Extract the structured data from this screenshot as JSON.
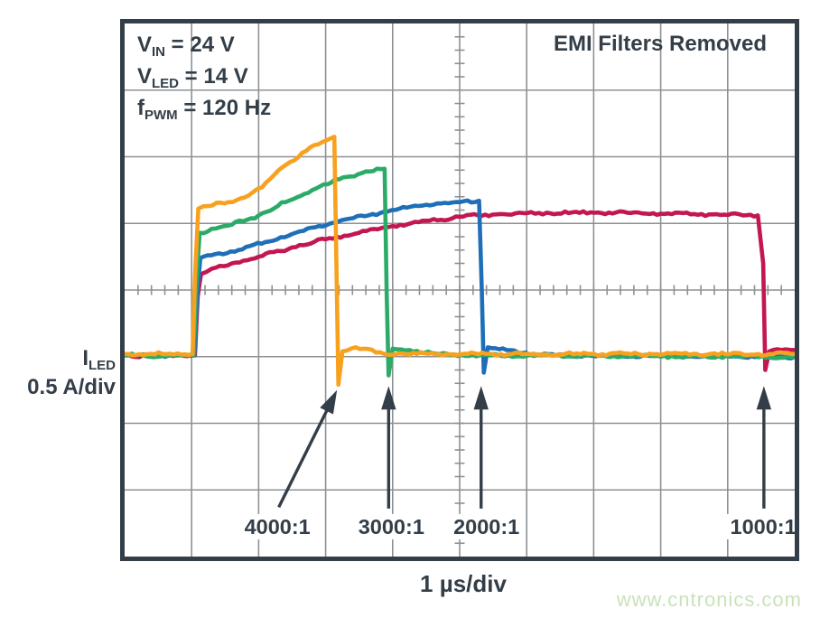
{
  "page": {
    "background": "#ffffff",
    "watermark": {
      "text": "www.cntronics.com",
      "color": "#c9e2ba"
    }
  },
  "scope": {
    "title": "EMI Filters Removed",
    "conditions": [
      {
        "base": "V",
        "sub": "IN",
        "rest": " = 24 V"
      },
      {
        "base": "V",
        "sub": "LED",
        "rest": " = 14 V"
      },
      {
        "base": "f",
        "sub": "PWM",
        "rest": " = 120 Hz"
      }
    ],
    "y_axis": {
      "base": "I",
      "sub": "LED",
      "scale": "0.5 A/div"
    },
    "x_axis": {
      "scale": "1 µs/div"
    },
    "colors": {
      "border": "#333e48",
      "grid": "#8e9194",
      "text": "#333e48",
      "arrow": "#333e48",
      "plot_bg": "#ffffff"
    }
  },
  "chart_data": {
    "type": "line",
    "title": "EMI Filters Removed",
    "subtitle_conditions": [
      "VIN = 24 V",
      "VLED = 14 V",
      "fPWM = 120 Hz"
    ],
    "x_unit": "µs",
    "y_unit": "A",
    "x_per_div": "1 µs/div",
    "y_per_div": "0.5 A/div",
    "x_range": [
      0,
      10
    ],
    "y_range_amps": [
      -1.525,
      2.5
    ],
    "grid": {
      "cols": 10,
      "rows": 8,
      "baseline_row_from_top": 5,
      "minor_ticks_per_div": 5,
      "center_cross_ticks": true
    },
    "legend_position": "callout-arrows-below-traces",
    "series": [
      {
        "name": "1000:1",
        "color": "#c31752",
        "points": [
          [
            0,
            0.01
          ],
          [
            1.05,
            0.01
          ],
          [
            1.09,
            0.45
          ],
          [
            1.14,
            0.62
          ],
          [
            1.3,
            0.66
          ],
          [
            1.6,
            0.7
          ],
          [
            2.0,
            0.75
          ],
          [
            2.5,
            0.82
          ],
          [
            3.0,
            0.88
          ],
          [
            3.5,
            0.93
          ],
          [
            4.0,
            0.98
          ],
          [
            4.5,
            1.02
          ],
          [
            5.0,
            1.05
          ],
          [
            5.6,
            1.07
          ],
          [
            6.3,
            1.08
          ],
          [
            7.5,
            1.08
          ],
          [
            8.5,
            1.07
          ],
          [
            9.45,
            1.06
          ],
          [
            9.53,
            0.7
          ],
          [
            9.56,
            -0.1
          ],
          [
            9.62,
            0.04
          ],
          [
            9.8,
            0.05
          ],
          [
            10,
            0.05
          ]
        ]
      },
      {
        "name": "2000:1",
        "color": "#1e6fb8",
        "points": [
          [
            0,
            0.01
          ],
          [
            1.04,
            0.01
          ],
          [
            1.08,
            0.45
          ],
          [
            1.13,
            0.74
          ],
          [
            1.35,
            0.77
          ],
          [
            1.7,
            0.8
          ],
          [
            2.1,
            0.86
          ],
          [
            2.5,
            0.92
          ],
          [
            2.9,
            0.98
          ],
          [
            3.3,
            1.03
          ],
          [
            3.7,
            1.07
          ],
          [
            4.1,
            1.11
          ],
          [
            4.5,
            1.14
          ],
          [
            5.0,
            1.16
          ],
          [
            5.29,
            1.17
          ],
          [
            5.33,
            0.5
          ],
          [
            5.36,
            -0.12
          ],
          [
            5.42,
            0.07
          ],
          [
            5.7,
            0.05
          ],
          [
            6.1,
            0.02
          ],
          [
            6.6,
            0.01
          ],
          [
            10,
            0.0
          ]
        ]
      },
      {
        "name": "3000:1",
        "color": "#2bab67",
        "points": [
          [
            0,
            0.01
          ],
          [
            1.03,
            0.01
          ],
          [
            1.07,
            0.55
          ],
          [
            1.12,
            0.93
          ],
          [
            1.3,
            0.96
          ],
          [
            1.6,
            0.99
          ],
          [
            2.0,
            1.06
          ],
          [
            2.4,
            1.16
          ],
          [
            2.8,
            1.25
          ],
          [
            3.2,
            1.33
          ],
          [
            3.6,
            1.39
          ],
          [
            3.88,
            1.41
          ],
          [
            3.91,
            0.5
          ],
          [
            3.94,
            -0.14
          ],
          [
            4.0,
            0.06
          ],
          [
            4.25,
            0.05
          ],
          [
            4.7,
            0.02
          ],
          [
            5.3,
            0.01
          ],
          [
            10,
            0.0
          ]
        ]
      },
      {
        "name": "4000:1",
        "color": "#f7a11f",
        "points": [
          [
            0,
            0.02
          ],
          [
            1.015,
            0.02
          ],
          [
            1.05,
            0.6
          ],
          [
            1.1,
            1.11
          ],
          [
            1.25,
            1.13
          ],
          [
            1.55,
            1.16
          ],
          [
            1.85,
            1.21
          ],
          [
            2.05,
            1.27
          ],
          [
            2.35,
            1.42
          ],
          [
            2.65,
            1.53
          ],
          [
            2.95,
            1.61
          ],
          [
            3.13,
            1.65
          ],
          [
            3.16,
            0.7
          ],
          [
            3.19,
            -0.21
          ],
          [
            3.25,
            0.04
          ],
          [
            3.45,
            0.07
          ],
          [
            3.75,
            0.03
          ],
          [
            4.2,
            0.02
          ],
          [
            10,
            0.02
          ]
        ]
      }
    ],
    "callouts": [
      {
        "label": "4000:1",
        "label_x_us": 2.28,
        "label_y_a": -1.33,
        "arrow": {
          "x1_us": 2.3,
          "y1_a": -1.13,
          "x2_us": 3.17,
          "y2_a": -0.25
        }
      },
      {
        "label": "3000:1",
        "label_x_us": 3.98,
        "label_y_a": -1.33,
        "arrow": {
          "x1_us": 3.94,
          "y1_a": -1.14,
          "x2_us": 3.94,
          "y2_a": -0.22
        }
      },
      {
        "label": "2000:1",
        "label_x_us": 5.4,
        "label_y_a": -1.33,
        "arrow": {
          "x1_us": 5.32,
          "y1_a": -1.14,
          "x2_us": 5.32,
          "y2_a": -0.22
        }
      },
      {
        "label": "1000:1",
        "label_x_us": 9.53,
        "label_y_a": -1.33,
        "arrow": {
          "x1_us": 9.54,
          "y1_a": -1.14,
          "x2_us": 9.54,
          "y2_a": -0.22
        }
      }
    ]
  }
}
